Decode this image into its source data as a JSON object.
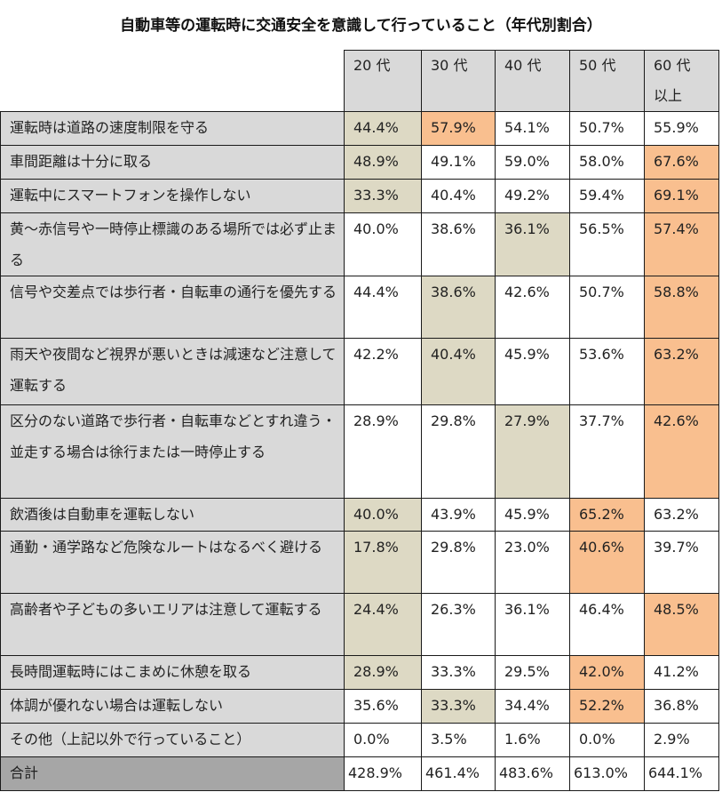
{
  "title": "自動車等の運転時に交通安全を意識して行っていること（年代別割合）",
  "colors": {
    "header_bg": "#d9d9d9",
    "label_bg": "#d9d9d9",
    "total_label_bg": "#a6a6a6",
    "lowest_highlight": "#ddd9c4",
    "highest_highlight": "#f9bf8f"
  },
  "columns": [
    "20 代",
    "30 代",
    "40 代",
    "50 代",
    "60 代\n以上"
  ],
  "column_lines": [
    [
      "20 代"
    ],
    [
      "30 代"
    ],
    [
      "40 代"
    ],
    [
      "50 代"
    ],
    [
      "60 代",
      "以上"
    ]
  ],
  "rows": [
    {
      "label": "運転時は道路の速度制限を守る",
      "values": [
        "44.4%",
        "57.9%",
        "54.1%",
        "50.7%",
        "55.9%"
      ],
      "highlight": [
        "low",
        "high",
        "",
        "",
        ""
      ]
    },
    {
      "label": "車間距離は十分に取る",
      "values": [
        "48.9%",
        "49.1%",
        "59.0%",
        "58.0%",
        "67.6%"
      ],
      "highlight": [
        "low",
        "",
        "",
        "",
        "high"
      ]
    },
    {
      "label": "運転中にスマートフォンを操作しない",
      "values": [
        "33.3%",
        "40.4%",
        "49.2%",
        "59.4%",
        "69.1%"
      ],
      "highlight": [
        "low",
        "",
        "",
        "",
        "high"
      ]
    },
    {
      "label": "黄～赤信号や一時停止標識のある場所では必ず止まる",
      "values": [
        "40.0%",
        "38.6%",
        "36.1%",
        "56.5%",
        "57.4%"
      ],
      "highlight": [
        "",
        "",
        "low",
        "",
        "high"
      ]
    },
    {
      "label": "信号や交差点では歩行者・自転車の通行を優先する",
      "values": [
        "44.4%",
        "38.6%",
        "42.6%",
        "50.7%",
        "58.8%"
      ],
      "highlight": [
        "",
        "low",
        "",
        "",
        "high"
      ]
    },
    {
      "label": "雨天や夜間など視界が悪いときは減速など注意して運転する",
      "values": [
        "42.2%",
        "40.4%",
        "45.9%",
        "53.6%",
        "63.2%"
      ],
      "highlight": [
        "",
        "low",
        "",
        "",
        "high"
      ]
    },
    {
      "label": "区分のない道路で歩行者・自転車などとすれ違う・並走する場合は徐行または一時停止する",
      "values": [
        "28.9%",
        "29.8%",
        "27.9%",
        "37.7%",
        "42.6%"
      ],
      "highlight": [
        "",
        "",
        "low",
        "",
        "high"
      ]
    },
    {
      "label": "飲酒後は自動車を運転しない",
      "values": [
        "40.0%",
        "43.9%",
        "45.9%",
        "65.2%",
        "63.2%"
      ],
      "highlight": [
        "low",
        "",
        "",
        "high",
        ""
      ]
    },
    {
      "label": "通勤・通学路など危険なルートはなるべく避ける",
      "values": [
        "17.8%",
        "29.8%",
        "23.0%",
        "40.6%",
        "39.7%"
      ],
      "highlight": [
        "low",
        "",
        "",
        "high",
        ""
      ]
    },
    {
      "label": "高齢者や子どもの多いエリアは注意して運転する",
      "values": [
        "24.4%",
        "26.3%",
        "36.1%",
        "46.4%",
        "48.5%"
      ],
      "highlight": [
        "low",
        "",
        "",
        "",
        "high"
      ]
    },
    {
      "label": "長時間運転時にはこまめに休憩を取る",
      "values": [
        "28.9%",
        "33.3%",
        "29.5%",
        "42.0%",
        "41.2%"
      ],
      "highlight": [
        "low",
        "",
        "",
        "high",
        ""
      ]
    },
    {
      "label": "体調が優れない場合は運転しない",
      "values": [
        "35.6%",
        "33.3%",
        "34.4%",
        "52.2%",
        "36.8%"
      ],
      "highlight": [
        "",
        "low",
        "",
        "high",
        ""
      ]
    },
    {
      "label": "その他（上記以外で行っていること）",
      "values": [
        "0.0%",
        "3.5%",
        "1.6%",
        "0.0%",
        "2.9%"
      ],
      "highlight": [
        "",
        "",
        "",
        "",
        ""
      ]
    }
  ],
  "total": {
    "label": "合計",
    "values": [
      "428.9%",
      "461.4%",
      "483.6%",
      "613.0%",
      "644.1%"
    ]
  }
}
